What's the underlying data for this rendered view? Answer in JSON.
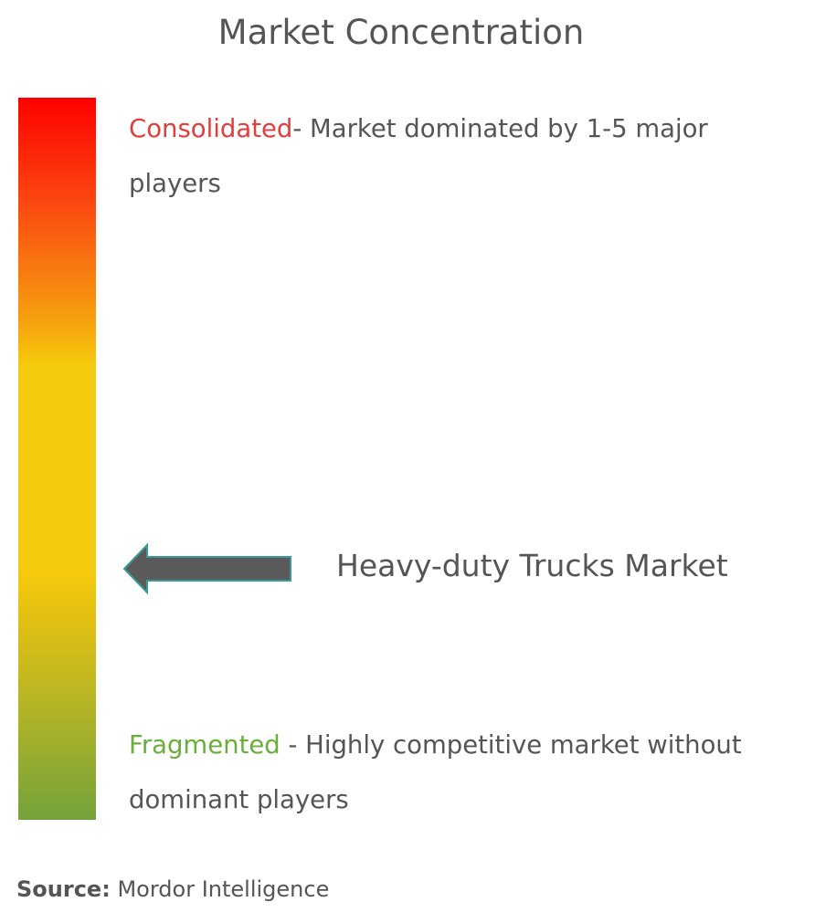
{
  "title": "Market Concentration",
  "scale": {
    "top_color": "#fe0000",
    "middle_color": "#f5c90c",
    "bottom_color": "#74a23b"
  },
  "consolidated": {
    "label": "Consolidated",
    "description": "- Market dominated by 1-5 major players",
    "label_color": "#e0403d"
  },
  "fragmented": {
    "label": "Fragmented",
    "description": " - Highly competitive market without dominant players",
    "label_color": "#6aae3b"
  },
  "marker": {
    "label": "Heavy-duty Trucks Market",
    "icon": "left-arrow-icon",
    "fill": "#5a5a5a",
    "outline": "#3a9a9a"
  },
  "source": {
    "label": "Source:",
    "value": "Mordor Intelligence"
  }
}
